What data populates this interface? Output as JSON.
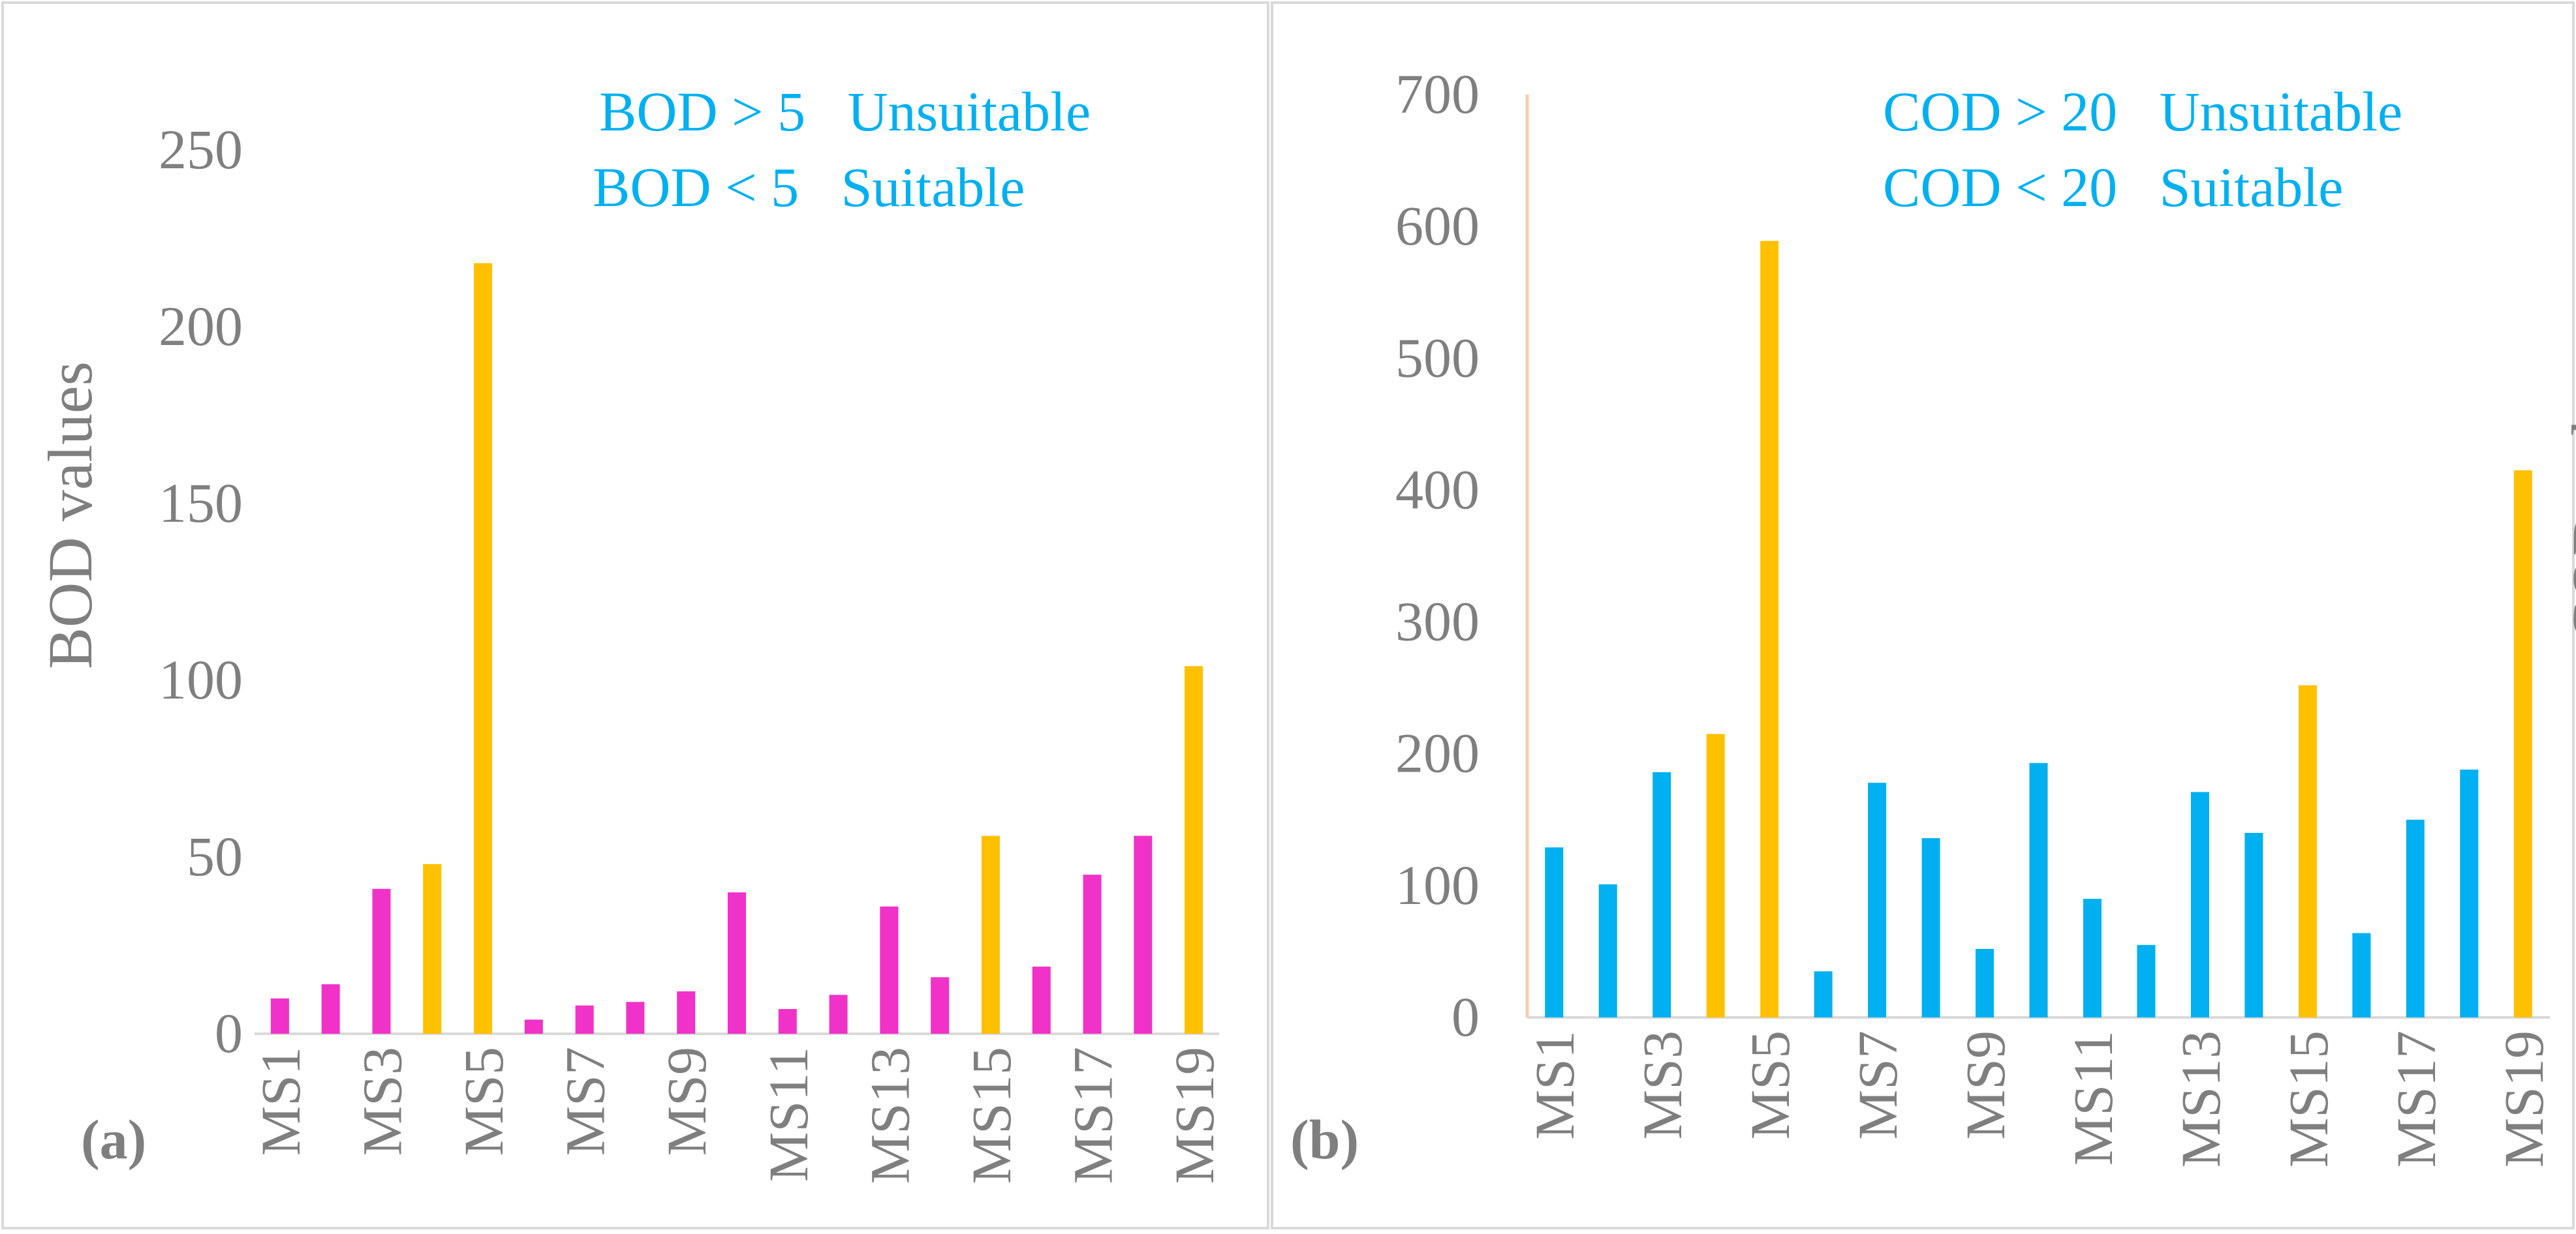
{
  "chart_data": [
    {
      "type": "bar",
      "panel_label": "(a)",
      "ylabel": "BOD values",
      "ylim": [
        0,
        250
      ],
      "yticks": [
        "0",
        "50",
        "100",
        "150",
        "200",
        "250"
      ],
      "categories": [
        "MS1",
        "MS2",
        "MS3",
        "MS4",
        "MS5",
        "MS6",
        "MS7",
        "MS8",
        "MS9",
        "MS10",
        "MS11",
        "MS12",
        "MS13",
        "MS14",
        "MS15",
        "MS16",
        "MS17",
        "MS18",
        "MS19"
      ],
      "tick_labels": [
        "MS1",
        "MS3",
        "MS5",
        "MS7",
        "MS9",
        "MS11",
        "MS13",
        "MS15",
        "MS17",
        "MS19"
      ],
      "values": [
        10,
        14,
        41,
        48,
        218,
        4,
        8,
        9,
        12,
        40,
        7,
        11,
        36,
        16,
        56,
        19,
        45,
        56,
        104
      ],
      "highlight": [
        false,
        false,
        false,
        true,
        true,
        false,
        false,
        false,
        false,
        false,
        false,
        false,
        false,
        false,
        true,
        false,
        false,
        false,
        true
      ],
      "legend": [
        "BOD > 5   Unsuitable",
        "BOD < 5   Suitable"
      ],
      "colors": {
        "normal": "#f032c8",
        "highlight": "#ffc000",
        "axis": "#d9d9d9",
        "text": "#7f7f7f",
        "legend": "#00b0f0"
      }
    },
    {
      "type": "bar",
      "panel_label": "(b)",
      "ylabel": "COD values",
      "ylim": [
        0,
        700
      ],
      "yticks": [
        "0",
        "100",
        "200",
        "300",
        "400",
        "500",
        "600",
        "700"
      ],
      "categories": [
        "MS1",
        "MS2",
        "MS3",
        "MS4",
        "MS5",
        "MS6",
        "MS7",
        "MS8",
        "MS9",
        "MS10",
        "MS11",
        "MS12",
        "MS13",
        "MS14",
        "MS15",
        "MS16",
        "MS17",
        "MS18",
        "MS19"
      ],
      "tick_labels": [
        "MS1",
        "MS3",
        "MS5",
        "MS7",
        "MS9",
        "MS11",
        "MS13",
        "MS15",
        "MS17",
        "MS19"
      ],
      "values": [
        129,
        101,
        186,
        215,
        589,
        35,
        178,
        136,
        52,
        193,
        90,
        55,
        171,
        140,
        252,
        64,
        150,
        188,
        415
      ],
      "highlight": [
        false,
        false,
        false,
        true,
        true,
        false,
        false,
        false,
        false,
        false,
        false,
        false,
        false,
        false,
        true,
        false,
        false,
        false,
        true
      ],
      "legend": [
        "COD > 20   Unsuitable",
        "COD < 20   Suitable"
      ],
      "colors": {
        "normal": "#00b0f0",
        "highlight": "#ffc000",
        "axis": "#d9d9d9",
        "text": "#7f7f7f",
        "legend": "#00b0f0",
        "y_axis_line": "#f8cbad"
      }
    }
  ]
}
